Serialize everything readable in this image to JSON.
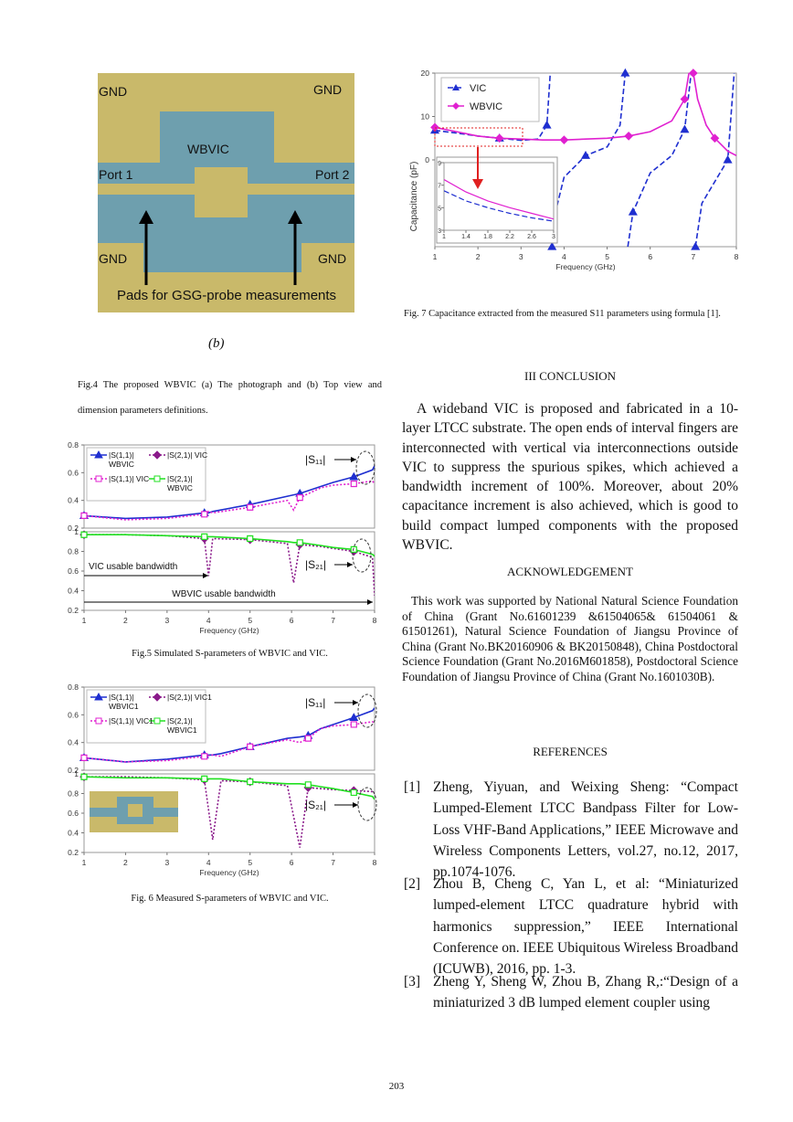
{
  "figure4": {
    "labels": [
      "GND",
      "GND",
      "WBVIC",
      "Port 1",
      "Port 2",
      "GND",
      "GND",
      "Pads for GSG-probe measurements"
    ],
    "sublabel": "(b)"
  },
  "captions": {
    "fig4": "Fig.4 The proposed WBVIC (a) The photograph and (b) Top view and dimension parameters definitions.",
    "fig5": "Fig.5 Simulated S-parameters of WBVIC and VIC.",
    "fig6": "Fig. 6 Measured S-parameters of WBVIC and VIC.",
    "fig7": "Fig. 7 Capacitance extracted from the measured S11 parameters using formula [1]."
  },
  "chart_data": [
    {
      "type": "line",
      "x": [
        1,
        2,
        3,
        3.9,
        4,
        4.1,
        5,
        5.9,
        6.05,
        6.2,
        6.7,
        7,
        7.5,
        7.95,
        8
      ],
      "xlim": [
        1,
        8
      ],
      "ylim": [
        0.2,
        0.8
      ],
      "yticks": [
        0.2,
        0.4,
        0.6,
        0.8
      ],
      "series": [
        {
          "name": "|S(1,1)| WBVIC",
          "color": "#1f2fd0",
          "dash": false,
          "marker": "triangle",
          "values": [
            0.29,
            0.27,
            0.28,
            0.31,
            0.31,
            0.32,
            0.37,
            0.43,
            0.44,
            0.45,
            0.5,
            0.53,
            0.57,
            0.62,
            0.65
          ]
        },
        {
          "name": "|S(1,1)| VIC",
          "color": "#e020d0",
          "dash": true,
          "marker": "square",
          "values": [
            0.29,
            0.26,
            0.27,
            0.3,
            0.32,
            0.31,
            0.35,
            0.4,
            0.33,
            0.42,
            0.49,
            0.51,
            0.52,
            0.54,
            0.52
          ]
        }
      ],
      "annotations": [
        "|S₁₁|"
      ]
    },
    {
      "type": "line",
      "x": [
        1,
        2,
        3,
        3.9,
        4,
        4.1,
        5,
        5.9,
        6.05,
        6.2,
        6.7,
        7,
        7.5,
        7.95,
        8
      ],
      "xlim": [
        1,
        8
      ],
      "xticks": [
        1,
        2,
        3,
        4,
        5,
        6,
        7,
        8
      ],
      "ylim": [
        0.2,
        1
      ],
      "yticks": [
        0.2,
        0.4,
        0.6,
        0.8,
        1
      ],
      "xlabel": "Frequency (GHz)",
      "series": [
        {
          "name": "|S(2,1)| VIC",
          "color": "#8a1a8a",
          "dash": true,
          "marker": "diamond",
          "values": [
            0.97,
            0.97,
            0.96,
            0.93,
            0.55,
            0.93,
            0.92,
            0.88,
            0.48,
            0.87,
            0.85,
            0.83,
            0.8,
            0.74,
            0.35
          ]
        },
        {
          "name": "|S(2,1)| WBVIC",
          "color": "#20e020",
          "dash": false,
          "marker": "square",
          "values": [
            0.97,
            0.97,
            0.96,
            0.95,
            0.95,
            0.95,
            0.93,
            0.9,
            0.89,
            0.89,
            0.86,
            0.84,
            0.82,
            0.77,
            0.75
          ]
        }
      ],
      "annotations": [
        "|S₂₁|",
        "VIC usable bandwidth",
        "WBVIC usable bandwidth"
      ]
    },
    {
      "type": "line",
      "x": [
        1,
        2,
        3,
        3.9,
        4.1,
        4.3,
        5,
        5.9,
        6.2,
        6.4,
        6.7,
        7,
        7.5,
        7.95,
        8
      ],
      "xlim": [
        1,
        8
      ],
      "ylim": [
        0.2,
        0.8
      ],
      "yticks": [
        0.2,
        0.4,
        0.6,
        0.8
      ],
      "series": [
        {
          "name": "|S(1,1)| WBVIC1",
          "color": "#1f2fd0",
          "dash": false,
          "marker": "triangle",
          "values": [
            0.29,
            0.26,
            0.28,
            0.31,
            0.31,
            0.32,
            0.37,
            0.43,
            0.44,
            0.45,
            0.5,
            0.53,
            0.58,
            0.63,
            0.65
          ]
        },
        {
          "name": "|S(1,1)| VIC1",
          "color": "#e020d0",
          "dash": true,
          "marker": "square",
          "values": [
            0.29,
            0.26,
            0.27,
            0.3,
            0.31,
            0.3,
            0.37,
            0.42,
            0.4,
            0.43,
            0.5,
            0.52,
            0.53,
            0.55,
            0.54
          ]
        }
      ],
      "annotations": [
        "|S₁₁|"
      ]
    },
    {
      "type": "line",
      "x": [
        1,
        2,
        3,
        3.9,
        4.1,
        4.3,
        5,
        5.9,
        6.2,
        6.4,
        6.7,
        7,
        7.5,
        7.95,
        8
      ],
      "xlim": [
        1,
        8
      ],
      "xticks": [
        1,
        2,
        3,
        4,
        5,
        6,
        7,
        8
      ],
      "ylim": [
        0.2,
        1
      ],
      "yticks": [
        0.2,
        0.4,
        0.6,
        0.8,
        1
      ],
      "xlabel": "Frequency (GHz)",
      "series": [
        {
          "name": "|S(2,1)| VIC1",
          "color": "#8a1a8a",
          "dash": true,
          "marker": "diamond",
          "values": [
            0.97,
            0.97,
            0.96,
            0.94,
            0.33,
            0.93,
            0.92,
            0.88,
            0.25,
            0.86,
            0.85,
            0.84,
            0.83,
            0.82,
            0.8
          ]
        },
        {
          "name": "|S(2,1)| WBVIC1",
          "color": "#20e020",
          "dash": false,
          "marker": "square",
          "values": [
            0.97,
            0.96,
            0.96,
            0.95,
            0.95,
            0.95,
            0.92,
            0.9,
            0.9,
            0.89,
            0.87,
            0.85,
            0.81,
            0.77,
            0.74
          ]
        }
      ],
      "annotations": [
        "|S₂₁|"
      ]
    },
    {
      "type": "line",
      "xlim": [
        1,
        8
      ],
      "xticks": [
        1,
        2,
        3,
        4,
        5,
        6,
        7,
        8
      ],
      "ylim": [
        -20,
        20
      ],
      "yticks": [
        0,
        10,
        20
      ],
      "xlabel": "Frequency (GHz)",
      "ylabel": "Capacitance (pF)",
      "series": [
        {
          "name": "VIC",
          "color": "#1f2fd0",
          "dash": true,
          "marker": "triangle",
          "x": [
            1,
            1.5,
            2,
            2.5,
            3,
            3.4,
            3.6,
            3.68,
            null,
            3.72,
            3.8,
            4,
            4.5,
            5,
            5.3,
            5.42,
            null,
            5.48,
            5.6,
            6,
            6.5,
            6.8,
            6.95,
            null,
            7.05,
            7.2,
            7.5,
            7.8,
            7.95
          ],
          "values": [
            6.8,
            6.2,
            5.5,
            5,
            4.5,
            4.8,
            8,
            20,
            null,
            -20,
            -12,
            -4,
            1,
            3,
            8,
            20,
            null,
            -20,
            -12,
            -3,
            1,
            7,
            20,
            null,
            -20,
            -10,
            -5,
            0,
            20
          ]
        },
        {
          "name": "WBVIC",
          "color": "#e020d0",
          "dash": false,
          "marker": "diamond",
          "x": [
            1,
            1.5,
            2,
            2.5,
            3,
            3.5,
            4,
            4.5,
            5,
            5.5,
            6,
            6.5,
            6.8,
            6.9,
            null,
            7,
            7.1,
            7.3,
            7.5,
            7.8,
            8
          ],
          "values": [
            7.5,
            6.5,
            5.5,
            5,
            4.8,
            4.6,
            4.6,
            4.8,
            5,
            5.5,
            6.5,
            9,
            14,
            20,
            null,
            20,
            14,
            8,
            5,
            2,
            1
          ]
        }
      ]
    },
    {
      "type": "line",
      "x": [
        1,
        1.4,
        1.8,
        2.2,
        2.6,
        3
      ],
      "xlim": [
        1,
        3
      ],
      "xticks": [
        1,
        1.4,
        1.8,
        2.2,
        2.6,
        3
      ],
      "ylim": [
        3,
        9
      ],
      "yticks": [
        3,
        5,
        7,
        9
      ],
      "series": [
        {
          "color": "#1f2fd0",
          "dash": true,
          "values": [
            6.5,
            5.6,
            5,
            4.5,
            4.1,
            3.8
          ]
        },
        {
          "color": "#e020d0",
          "dash": false,
          "values": [
            7.5,
            6.4,
            5.6,
            5,
            4.5,
            4
          ]
        }
      ]
    }
  ],
  "sections": {
    "conclusion_heading": "III CONCLUSION",
    "conclusion": "A wideband VIC is proposed and fabricated in a 10-layer LTCC substrate. The open ends of interval fingers are interconnected with vertical via interconnections outside VIC to suppress the spurious spikes, which achieved a bandwidth increment of 100%. Moreover, about 20% capacitance increment is also achieved, which is good to build compact lumped components with the proposed WBVIC.",
    "ack_heading": "ACKNOWLEDGEMENT",
    "ack": "This work was supported by National Natural Science Foundation of China (Grant No.61601239 &61504065& 61504061 & 61501261), Natural Science Foundation of Jiangsu Province of China (Grant No.BK20160906 & BK20150848), China Postdoctoral Science Foundation (Grant No.2016M601858), Postdoctoral Science Foundation of Jiangsu Province of China (Grant No.1601030B).",
    "ref_heading": "REFERENCES"
  },
  "references": [
    {
      "label": "[1]",
      "text": "Zheng, Yiyuan, and Weixing Sheng: “Compact Lumped-Element LTCC Bandpass Filter for Low-Loss VHF-Band Applications,” IEEE Microwave and Wireless Components Letters, vol.27, no.12, 2017, pp.1074-1076."
    },
    {
      "label": "[2]",
      "text": "Zhou B, Cheng C, Yan L, et al: “Miniaturized lumped-element LTCC quadrature hybrid with harmonics suppression,” IEEE International Conference on. IEEE Ubiquitous Wireless Broadband (ICUWB), 2016, pp. 1-3."
    },
    {
      "label": "[3]",
      "text": "Zheng Y, Sheng W, Zhou B, Zhang R,:“Design of a miniaturized 3 dB lumped element coupler using"
    }
  ],
  "page_number": "203"
}
